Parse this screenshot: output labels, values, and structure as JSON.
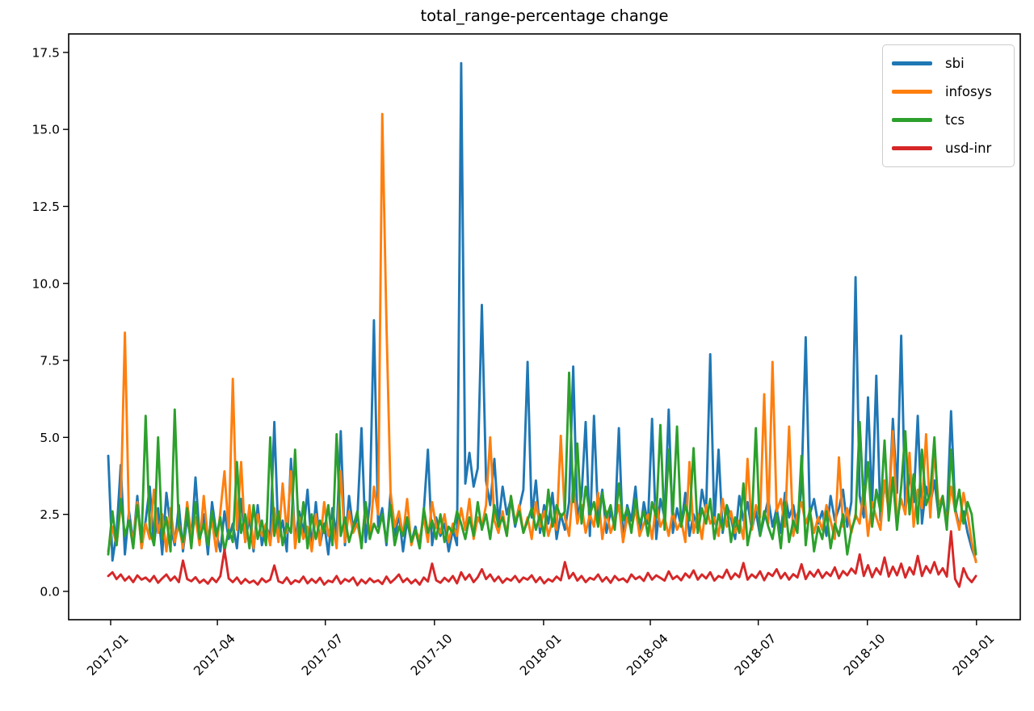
{
  "title": "total_range-percentage change",
  "chart_data": {
    "type": "line",
    "title": "total_range-percentage change",
    "xlabel": "",
    "ylabel": "",
    "grid": false,
    "legend_position": "upper right",
    "x_unit": "days since 2017-01-01 (samples every 3.5 days)",
    "x_start_day": -2,
    "x_step_days": 3.5,
    "xlim_days": [
      -35.4,
      766.9
    ],
    "ylim": [
      -0.92,
      18.1
    ],
    "x_ticks": [
      {
        "day": 0,
        "label": "2017-01"
      },
      {
        "day": 90,
        "label": "2017-04"
      },
      {
        "day": 181,
        "label": "2017-07"
      },
      {
        "day": 273,
        "label": "2017-10"
      },
      {
        "day": 365,
        "label": "2018-01"
      },
      {
        "day": 455,
        "label": "2018-04"
      },
      {
        "day": 546,
        "label": "2018-07"
      },
      {
        "day": 638,
        "label": "2018-10"
      },
      {
        "day": 730,
        "label": "2019-01"
      }
    ],
    "y_ticks": [
      0,
      2.5,
      5,
      7.5,
      10,
      12.5,
      15,
      17.5
    ],
    "y_tick_labels": [
      "0.0",
      "2.5",
      "5.0",
      "7.5",
      "10.0",
      "12.5",
      "15.0",
      "17.5"
    ],
    "series": [
      {
        "name": "sbi",
        "color": "#1f77b4",
        "values": [
          4.4,
          1.0,
          1.9,
          4.1,
          1.2,
          2.6,
          1.6,
          3.1,
          1.4,
          2.3,
          3.4,
          1.5,
          2.7,
          1.2,
          3.2,
          2.1,
          1.5,
          2.8,
          1.3,
          2.4,
          1.6,
          3.7,
          1.8,
          2.5,
          1.2,
          2.9,
          1.9,
          1.3,
          2.6,
          1.7,
          2.2,
          1.4,
          3.0,
          1.6,
          2.4,
          1.3,
          2.8,
          1.5,
          2.1,
          1.8,
          5.5,
          1.7,
          2.3,
          1.3,
          4.3,
          1.6,
          2.6,
          1.9,
          3.3,
          1.4,
          2.9,
          1.5,
          2.2,
          1.2,
          2.7,
          1.8,
          5.2,
          1.5,
          3.1,
          2.0,
          2.4,
          5.3,
          1.6,
          2.9,
          8.8,
          2.1,
          2.7,
          1.5,
          3.2,
          1.8,
          2.5,
          1.3,
          2.3,
          1.6,
          2.1,
          1.4,
          2.6,
          4.6,
          1.5,
          2.4,
          1.8,
          2.2,
          1.3,
          2.0,
          1.5,
          17.15,
          3.5,
          4.5,
          3.4,
          4.0,
          9.3,
          3.6,
          2.8,
          4.3,
          2.2,
          3.4,
          2.5,
          3.0,
          2.1,
          2.7,
          3.3,
          7.45,
          2.4,
          3.6,
          1.9,
          2.8,
          2.2,
          3.2,
          1.7,
          2.5,
          2.0,
          2.9,
          7.3,
          2.3,
          3.1,
          5.5,
          1.8,
          5.7,
          2.4,
          3.3,
          1.9,
          2.6,
          2.1,
          5.3,
          1.6,
          2.8,
          2.3,
          3.4,
          1.8,
          2.9,
          2.2,
          5.6,
          1.7,
          3.0,
          2.4,
          5.9,
          1.9,
          2.7,
          2.1,
          3.2,
          1.8,
          2.5,
          2.0,
          3.3,
          2.6,
          7.7,
          2.2,
          4.6,
          1.9,
          2.8,
          2.4,
          1.7,
          3.1,
          2.3,
          2.9,
          2.0,
          2.6,
          1.8,
          2.4,
          3.0,
          2.1,
          2.7,
          1.9,
          3.2,
          2.4,
          2.8,
          2.0,
          3.4,
          8.25,
          2.5,
          3.0,
          2.2,
          2.6,
          1.8,
          3.1,
          2.3,
          2.7,
          3.3,
          2.1,
          2.9,
          10.2,
          3.1,
          2.4,
          6.3,
          2.8,
          7.0,
          2.3,
          3.5,
          2.7,
          5.6,
          3.2,
          8.3,
          2.6,
          3.8,
          2.9,
          5.7,
          2.2,
          3.4,
          2.8,
          3.6,
          2.5,
          3.0,
          2.3,
          5.85,
          2.7,
          2.1,
          2.6,
          1.9,
          1.4,
          1.0
        ]
      },
      {
        "name": "infosys",
        "color": "#ff7f0e",
        "values": [
          1.3,
          2.1,
          1.5,
          2.8,
          8.4,
          2.3,
          1.6,
          2.9,
          1.4,
          2.2,
          1.7,
          3.3,
          1.9,
          2.5,
          1.3,
          2.7,
          1.6,
          2.2,
          1.4,
          2.9,
          1.8,
          2.4,
          1.5,
          3.1,
          1.7,
          2.3,
          1.3,
          2.6,
          3.9,
          1.9,
          6.9,
          2.0,
          4.2,
          1.6,
          2.8,
          1.4,
          2.5,
          1.8,
          2.2,
          1.5,
          2.7,
          1.6,
          3.5,
          1.9,
          3.9,
          1.4,
          2.4,
          1.7,
          2.1,
          1.3,
          2.5,
          1.5,
          2.9,
          1.8,
          2.3,
          1.4,
          3.9,
          1.6,
          2.6,
          1.9,
          2.2,
          1.5,
          2.8,
          1.7,
          3.4,
          2.5,
          15.5,
          8.7,
          3.2,
          2.1,
          2.6,
          1.8,
          3.0,
          1.5,
          2.0,
          1.7,
          2.4,
          1.6,
          2.9,
          2.1,
          1.9,
          2.5,
          1.6,
          2.2,
          1.8,
          2.7,
          2.0,
          3.0,
          1.7,
          2.4,
          2.1,
          2.8,
          5.0,
          2.3,
          1.9,
          2.6,
          1.8,
          3.1,
          2.2,
          2.8,
          1.9,
          2.4,
          1.7,
          2.9,
          2.1,
          2.6,
          1.8,
          2.3,
          2.0,
          5.05,
          2.4,
          1.8,
          3.5,
          2.2,
          2.8,
          1.9,
          2.5,
          2.1,
          3.2,
          1.7,
          2.6,
          1.9,
          2.3,
          2.8,
          1.6,
          2.4,
          2.0,
          2.7,
          1.8,
          2.2,
          2.5,
          1.7,
          2.9,
          2.1,
          2.4,
          1.8,
          2.6,
          2.0,
          2.3,
          1.6,
          4.2,
          1.9,
          2.5,
          1.7,
          2.8,
          2.2,
          2.4,
          1.8,
          3.0,
          2.1,
          2.6,
          1.9,
          2.3,
          1.7,
          4.3,
          2.0,
          2.8,
          2.4,
          6.4,
          2.2,
          7.45,
          2.6,
          3.0,
          2.1,
          5.35,
          1.8,
          2.5,
          2.9,
          2.2,
          2.6,
          1.9,
          2.4,
          2.0,
          2.8,
          2.3,
          1.7,
          4.35,
          2.1,
          2.7,
          1.9,
          2.5,
          2.2,
          3.4,
          1.8,
          2.9,
          2.4,
          2.0,
          3.6,
          2.6,
          5.2,
          2.3,
          3.0,
          2.5,
          4.5,
          2.1,
          3.3,
          2.7,
          5.1,
          2.4,
          4.6,
          2.8,
          3.1,
          2.2,
          3.4,
          2.6,
          2.0,
          3.2,
          2.5,
          1.6,
          0.95
        ]
      },
      {
        "name": "tcs",
        "color": "#2ca02c",
        "values": [
          1.2,
          2.6,
          1.5,
          3.0,
          1.8,
          2.3,
          1.4,
          2.8,
          1.6,
          5.7,
          2.0,
          1.5,
          5.0,
          1.7,
          2.4,
          1.3,
          5.9,
          2.1,
          1.6,
          2.7,
          1.4,
          2.9,
          1.7,
          2.2,
          1.5,
          2.6,
          1.8,
          2.4,
          1.3,
          2.0,
          1.6,
          4.2,
          1.9,
          2.5,
          1.4,
          2.8,
          1.7,
          2.3,
          1.5,
          5.0,
          1.8,
          2.6,
          1.5,
          2.2,
          1.9,
          4.6,
          1.6,
          2.9,
          1.4,
          2.5,
          1.7,
          2.3,
          1.9,
          2.8,
          1.5,
          5.1,
          1.8,
          2.4,
          1.6,
          2.1,
          2.6,
          1.4,
          2.9,
          1.7,
          2.2,
          1.9,
          2.5,
          1.6,
          2.8,
          1.5,
          2.1,
          1.8,
          2.4,
          1.6,
          2.0,
          1.4,
          2.7,
          1.9,
          2.3,
          1.7,
          2.5,
          1.6,
          2.1,
          1.9,
          2.6,
          2.2,
          1.7,
          2.4,
          1.8,
          2.9,
          2.0,
          2.5,
          1.7,
          2.8,
          2.1,
          2.4,
          1.8,
          3.1,
          2.2,
          2.6,
          1.9,
          2.3,
          2.7,
          2.0,
          2.5,
          1.8,
          3.3,
          2.1,
          2.8,
          2.4,
          2.6,
          7.1,
          2.9,
          4.8,
          2.2,
          3.4,
          2.5,
          2.9,
          2.1,
          3.2,
          2.4,
          2.8,
          2.0,
          3.5,
          2.3,
          2.7,
          1.9,
          3.0,
          2.2,
          2.6,
          1.8,
          2.9,
          2.4,
          5.4,
          2.0,
          4.6,
          2.5,
          5.35,
          2.1,
          2.8,
          2.3,
          4.65,
          1.9,
          2.7,
          2.2,
          3.0,
          1.7,
          2.5,
          2.0,
          2.8,
          1.6,
          2.4,
          1.9,
          3.5,
          1.5,
          2.2,
          5.3,
          1.8,
          2.6,
          2.1,
          1.7,
          2.5,
          1.4,
          2.9,
          1.6,
          2.3,
          1.9,
          4.4,
          1.5,
          2.7,
          1.3,
          2.1,
          1.7,
          2.6,
          1.4,
          2.2,
          1.8,
          2.5,
          1.2,
          2.0,
          2.4,
          5.5,
          2.8,
          4.2,
          2.1,
          3.3,
          2.6,
          4.9,
          2.3,
          3.7,
          2.0,
          3.4,
          5.2,
          2.5,
          3.8,
          2.2,
          4.6,
          2.8,
          3.2,
          5.0,
          2.4,
          3.1,
          2.0,
          4.6,
          2.6,
          3.3,
          2.2,
          2.9,
          2.5,
          1.2
        ]
      },
      {
        "name": "usd-inr",
        "color": "#d62728",
        "values": [
          0.5,
          0.62,
          0.4,
          0.55,
          0.35,
          0.48,
          0.3,
          0.52,
          0.38,
          0.45,
          0.32,
          0.5,
          0.28,
          0.42,
          0.55,
          0.35,
          0.48,
          0.3,
          1.0,
          0.4,
          0.33,
          0.46,
          0.28,
          0.38,
          0.25,
          0.44,
          0.3,
          0.5,
          1.35,
          0.42,
          0.3,
          0.45,
          0.25,
          0.4,
          0.28,
          0.35,
          0.22,
          0.42,
          0.3,
          0.38,
          0.84,
          0.33,
          0.27,
          0.45,
          0.24,
          0.36,
          0.3,
          0.48,
          0.26,
          0.4,
          0.28,
          0.44,
          0.22,
          0.35,
          0.3,
          0.5,
          0.25,
          0.4,
          0.32,
          0.45,
          0.2,
          0.38,
          0.26,
          0.42,
          0.3,
          0.36,
          0.24,
          0.48,
          0.28,
          0.4,
          0.55,
          0.3,
          0.42,
          0.26,
          0.38,
          0.22,
          0.45,
          0.32,
          0.9,
          0.36,
          0.28,
          0.44,
          0.32,
          0.5,
          0.26,
          0.62,
          0.38,
          0.55,
          0.3,
          0.46,
          0.72,
          0.4,
          0.55,
          0.33,
          0.48,
          0.28,
          0.42,
          0.35,
          0.5,
          0.3,
          0.45,
          0.38,
          0.52,
          0.3,
          0.46,
          0.26,
          0.4,
          0.32,
          0.48,
          0.36,
          0.95,
          0.42,
          0.6,
          0.35,
          0.5,
          0.3,
          0.44,
          0.38,
          0.55,
          0.32,
          0.46,
          0.28,
          0.5,
          0.36,
          0.42,
          0.3,
          0.55,
          0.4,
          0.48,
          0.34,
          0.6,
          0.38,
          0.52,
          0.44,
          0.35,
          0.65,
          0.4,
          0.5,
          0.36,
          0.58,
          0.45,
          0.68,
          0.38,
          0.55,
          0.42,
          0.62,
          0.35,
          0.5,
          0.44,
          0.7,
          0.4,
          0.58,
          0.46,
          0.92,
          0.38,
          0.55,
          0.44,
          0.65,
          0.36,
          0.6,
          0.5,
          0.72,
          0.42,
          0.6,
          0.38,
          0.56,
          0.45,
          0.88,
          0.4,
          0.64,
          0.48,
          0.7,
          0.44,
          0.62,
          0.5,
          0.78,
          0.42,
          0.66,
          0.52,
          0.74,
          0.58,
          1.2,
          0.5,
          0.85,
          0.46,
          0.75,
          0.55,
          1.1,
          0.48,
          0.8,
          0.52,
          0.9,
          0.45,
          0.78,
          0.55,
          1.15,
          0.5,
          0.82,
          0.6,
          0.95,
          0.55,
          0.75,
          0.48,
          1.95,
          0.4,
          0.15,
          0.75,
          0.45,
          0.3,
          0.5
        ]
      }
    ]
  }
}
